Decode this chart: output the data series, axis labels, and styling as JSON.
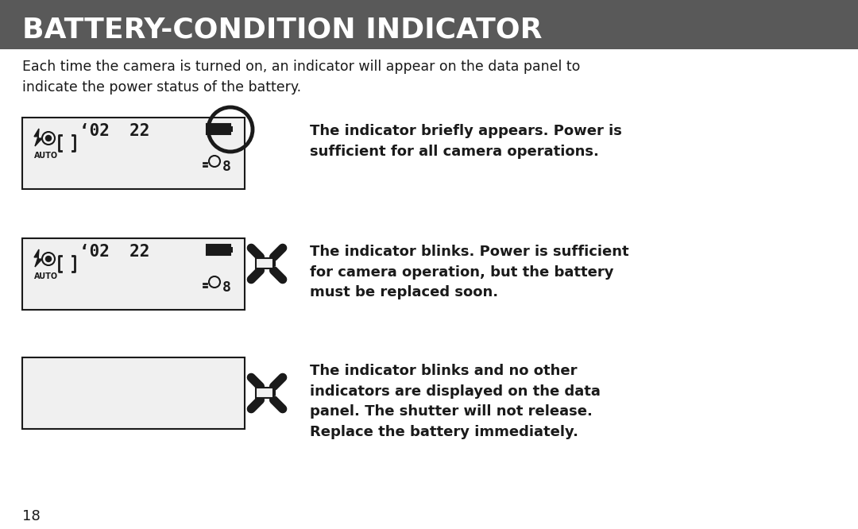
{
  "title": "BATTERY-CONDITION INDICATOR",
  "title_bg": "#595959",
  "title_fg": "#ffffff",
  "body_bg": "#ffffff",
  "body_fg": "#1a1a1a",
  "intro_text": "Each time the camera is turned on, an indicator will appear on the data panel to\nindicate the power status of the battery.",
  "page_number": "18",
  "rows": [
    {
      "desc_lines": [
        "The indicator briefly appears. Power is",
        "sufficient for all camera operations."
      ],
      "panel_type": "full_with_circle"
    },
    {
      "desc_lines": [
        "The indicator blinks. Power is sufficient",
        "for camera operation, but the battery",
        "must be replaced soon."
      ],
      "panel_type": "full_with_blink"
    },
    {
      "desc_lines": [
        "The indicator blinks and no other",
        "indicators are displayed on the data",
        "panel. The shutter will not release.",
        "Replace the battery immediately."
      ],
      "panel_type": "empty_with_blink"
    }
  ]
}
